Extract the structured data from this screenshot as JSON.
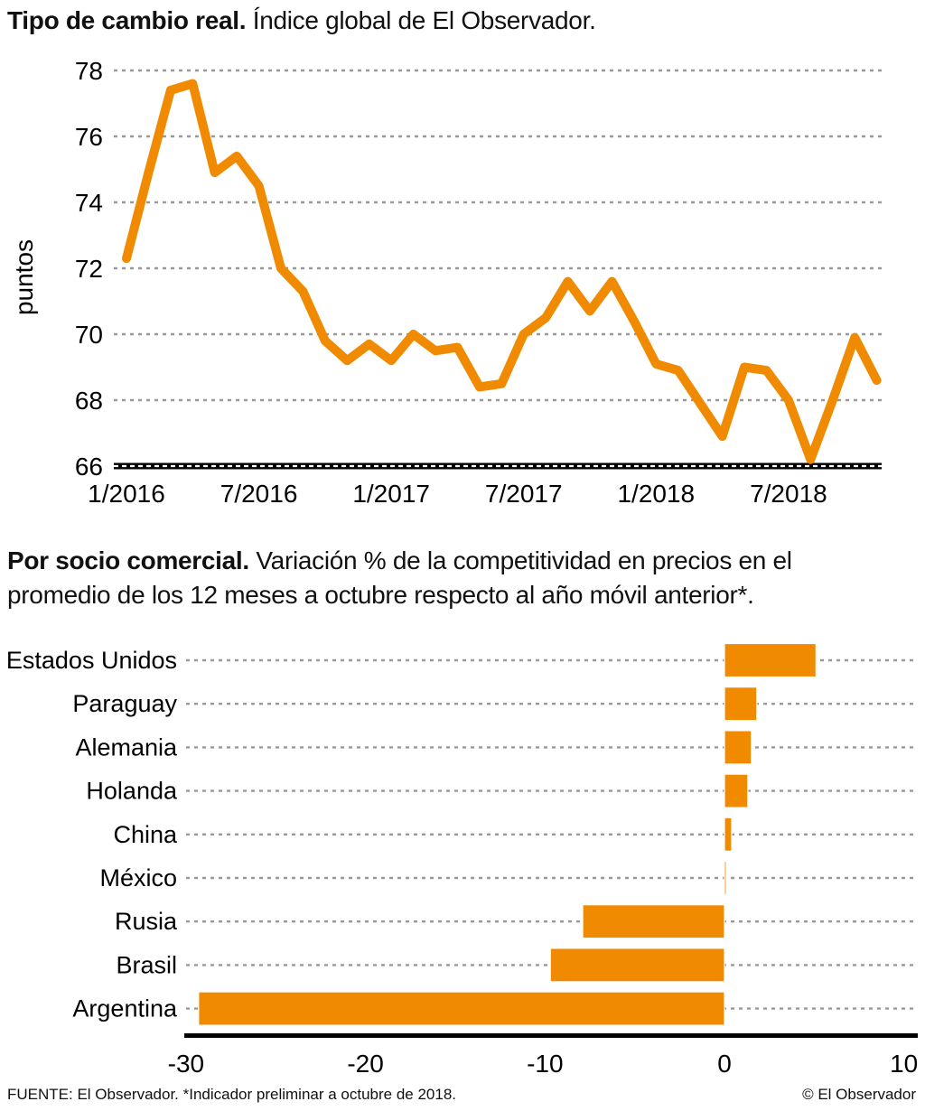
{
  "header": {
    "title_bold": "Tipo de cambio real.",
    "title_rest": " Índice global de El Observador."
  },
  "section2": {
    "title_bold": "Por socio comercial.",
    "title_rest": " Variación % de la competitividad en precios en el promedio de los 12 meses a octubre respecto al año móvil anterior*."
  },
  "footer": {
    "source": "FUENTE: El Observador. *Indicador preliminar a octubre de 2018.",
    "copyright": "© El Observador"
  },
  "colors": {
    "accent": "#F08A00",
    "grid": "#999999",
    "axis": "#000000"
  },
  "chart_data": [
    {
      "type": "line",
      "title": "Tipo de cambio real. Índice global de El Observador.",
      "series_name": "Índice global de tipo de cambio real",
      "ylabel": "puntos",
      "ylim": [
        66,
        78
      ],
      "yticks": [
        66,
        68,
        70,
        72,
        74,
        76,
        78
      ],
      "grid": true,
      "legend": false,
      "x_tick_labels": [
        "1/2016",
        "7/2016",
        "1/2017",
        "7/2017",
        "1/2018",
        "7/2018"
      ],
      "x_tick_month_index": [
        0,
        6,
        12,
        18,
        24,
        30
      ],
      "x": [
        "1/2016",
        "2/2016",
        "3/2016",
        "4/2016",
        "5/2016",
        "6/2016",
        "7/2016",
        "8/2016",
        "9/2016",
        "10/2016",
        "11/2016",
        "12/2016",
        "1/2017",
        "2/2017",
        "3/2017",
        "4/2017",
        "5/2017",
        "6/2017",
        "7/2017",
        "8/2017",
        "9/2017",
        "10/2017",
        "11/2017",
        "12/2017",
        "1/2018",
        "2/2018",
        "3/2018",
        "4/2018",
        "5/2018",
        "6/2018",
        "7/2018",
        "8/2018",
        "9/2018",
        "10/2018",
        "11/2018"
      ],
      "values": [
        72.3,
        74.9,
        77.4,
        77.6,
        74.9,
        75.4,
        74.5,
        72.0,
        71.3,
        69.8,
        69.2,
        69.7,
        69.2,
        70.0,
        69.5,
        69.6,
        68.4,
        68.5,
        70.0,
        70.5,
        71.6,
        70.7,
        71.6,
        70.4,
        69.1,
        68.9,
        67.9,
        66.9,
        69.0,
        68.9,
        68.0,
        66.2,
        68.0,
        69.9,
        68.6
      ]
    },
    {
      "type": "bar",
      "orientation": "horizontal",
      "title": "Por socio comercial. Variación % de la competitividad en precios en el promedio de los 12 meses a octubre respecto al año móvil anterior*.",
      "unit": "%",
      "categories": [
        "Estados Unidos",
        "Paraguay",
        "Alemania",
        "Holanda",
        "China",
        "México",
        "Rusia",
        "Brasil",
        "Argentina"
      ],
      "values": [
        5.1,
        1.8,
        1.5,
        1.3,
        0.4,
        0.1,
        -7.9,
        -9.7,
        -29.3
      ],
      "xlim": [
        -30,
        10
      ],
      "xticks": [
        -30,
        -20,
        -10,
        0,
        10
      ],
      "grid": true,
      "legend": false
    }
  ]
}
